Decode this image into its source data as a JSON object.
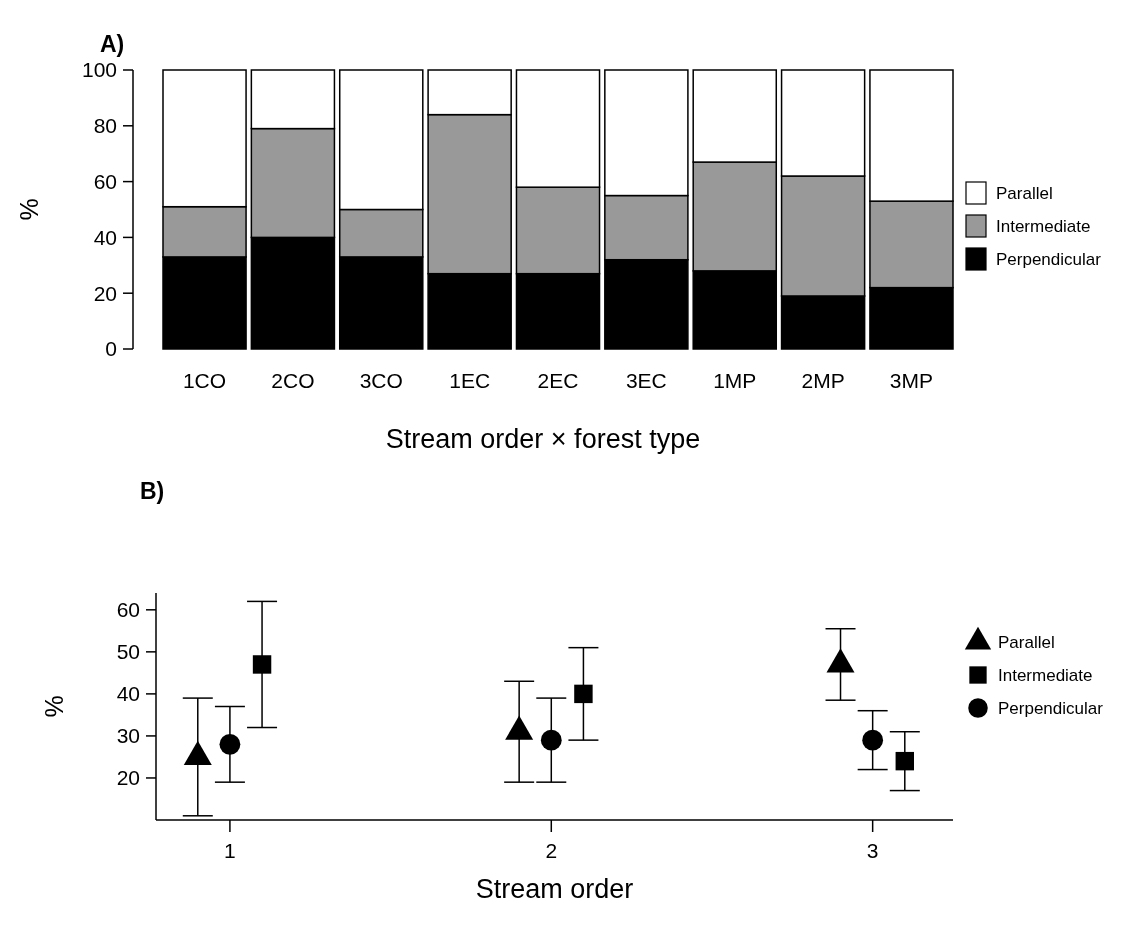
{
  "chart_data": [
    {
      "type": "bar",
      "title": "A)",
      "xlabel": "Stream order × forest type",
      "ylabel": "%",
      "stacked": true,
      "categories": [
        "1CO",
        "2CO",
        "3CO",
        "1EC",
        "2EC",
        "3EC",
        "1MP",
        "2MP",
        "3MP"
      ],
      "series": [
        {
          "name": "Perpendicular",
          "color": "#000000",
          "values": [
            33,
            40,
            33,
            27,
            27,
            32,
            28,
            19,
            22
          ]
        },
        {
          "name": "Intermediate",
          "color": "#999999",
          "values": [
            18,
            39,
            17,
            57,
            31,
            23,
            39,
            43,
            31
          ]
        },
        {
          "name": "Parallel",
          "color": "#ffffff",
          "values": [
            49,
            21,
            50,
            16,
            42,
            45,
            33,
            38,
            47
          ]
        }
      ],
      "ylim": [
        0,
        100
      ],
      "yticks": [
        0,
        20,
        40,
        60,
        80,
        100
      ],
      "legend": "right"
    },
    {
      "type": "scatter",
      "title": "B)",
      "xlabel": "Stream order",
      "ylabel": "%",
      "xlim": [
        0.77,
        3.25
      ],
      "xticks": [
        1,
        2,
        3
      ],
      "ylim": [
        10,
        64
      ],
      "yticks": [
        20,
        30,
        40,
        50,
        60
      ],
      "legend": "right",
      "series": [
        {
          "name": "Parallel",
          "color": "#000000",
          "marker": "triangle",
          "x": [
            0.9,
            1.9,
            2.9
          ],
          "values": [
            25,
            31,
            47
          ],
          "errors": [
            [
              11,
              39
            ],
            [
              19,
              43
            ],
            [
              38.5,
              55.5
            ]
          ]
        },
        {
          "name": "Intermediate",
          "color": "#000000",
          "marker": "square",
          "x": [
            1.1,
            2.1,
            3.1
          ],
          "values": [
            47,
            40,
            24
          ],
          "errors": [
            [
              32,
              62
            ],
            [
              29,
              51
            ],
            [
              17,
              31
            ]
          ]
        },
        {
          "name": "Perpendicular",
          "color": "#000000",
          "marker": "circle",
          "x": [
            1,
            2,
            3
          ],
          "values": [
            28,
            29,
            29
          ],
          "errors": [
            [
              19,
              37
            ],
            [
              19,
              39
            ],
            [
              22,
              36
            ]
          ]
        }
      ]
    }
  ]
}
